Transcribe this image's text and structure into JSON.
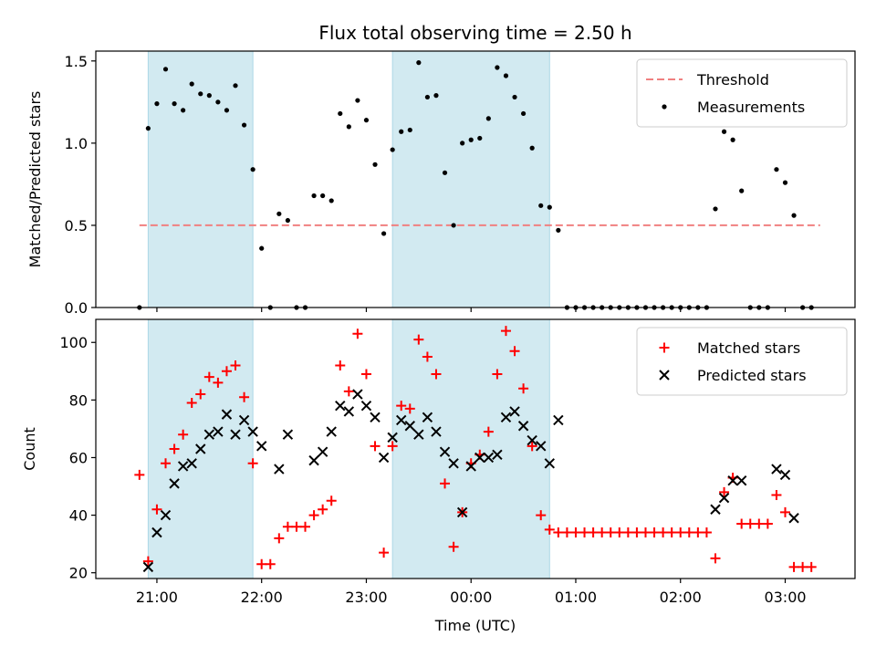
{
  "figure": {
    "title": "Flux total observing time = 2.50 h",
    "xlabel": "Time (UTC)",
    "xticks": [
      "21:00",
      "22:00",
      "23:00",
      "00:00",
      "01:00",
      "02:00",
      "03:00"
    ],
    "shade_color": "#add8e6",
    "shaded_intervals": [
      [
        "20:55",
        "21:55"
      ],
      [
        "23:15",
        "00:45"
      ]
    ]
  },
  "chart_data": [
    {
      "type": "scatter",
      "ylabel": "Matched/Predicted stars",
      "ylim": [
        0,
        1.56
      ],
      "yticks": [
        "0.0",
        "0.5",
        "1.0",
        "1.5"
      ],
      "legend": {
        "placement": "top-right"
      },
      "threshold": {
        "name": "Threshold",
        "value": 0.5,
        "x_range": [
          "20:50",
          "03:20"
        ],
        "color": "#f08080",
        "style": "dashed"
      },
      "series": [
        {
          "name": "Measurements",
          "color": "#000000",
          "marker": "dot",
          "points": [
            [
              "20:50",
              0.0
            ],
            [
              "20:55",
              1.09
            ],
            [
              "21:00",
              1.24
            ],
            [
              "21:05",
              1.45
            ],
            [
              "21:10",
              1.24
            ],
            [
              "21:15",
              1.2
            ],
            [
              "21:20",
              1.36
            ],
            [
              "21:25",
              1.3
            ],
            [
              "21:30",
              1.29
            ],
            [
              "21:35",
              1.25
            ],
            [
              "21:40",
              1.2
            ],
            [
              "21:45",
              1.35
            ],
            [
              "21:50",
              1.11
            ],
            [
              "21:55",
              0.84
            ],
            [
              "22:00",
              0.36
            ],
            [
              "22:05",
              0.0
            ],
            [
              "22:10",
              0.57
            ],
            [
              "22:15",
              0.53
            ],
            [
              "22:20",
              0.0
            ],
            [
              "22:25",
              0.0
            ],
            [
              "22:30",
              0.68
            ],
            [
              "22:35",
              0.68
            ],
            [
              "22:40",
              0.65
            ],
            [
              "22:45",
              1.18
            ],
            [
              "22:50",
              1.1
            ],
            [
              "22:55",
              1.26
            ],
            [
              "23:00",
              1.14
            ],
            [
              "23:05",
              0.87
            ],
            [
              "23:10",
              0.45
            ],
            [
              "23:15",
              0.96
            ],
            [
              "23:20",
              1.07
            ],
            [
              "23:25",
              1.08
            ],
            [
              "23:30",
              1.49
            ],
            [
              "23:35",
              1.28
            ],
            [
              "23:40",
              1.29
            ],
            [
              "23:45",
              0.82
            ],
            [
              "23:50",
              0.5
            ],
            [
              "23:55",
              1.0
            ],
            [
              "00:00",
              1.02
            ],
            [
              "00:05",
              1.03
            ],
            [
              "00:10",
              1.15
            ],
            [
              "00:15",
              1.46
            ],
            [
              "00:20",
              1.41
            ],
            [
              "00:25",
              1.28
            ],
            [
              "00:30",
              1.18
            ],
            [
              "00:35",
              0.97
            ],
            [
              "00:40",
              0.62
            ],
            [
              "00:45",
              0.61
            ],
            [
              "00:50",
              0.47
            ],
            [
              "00:55",
              0.0
            ],
            [
              "01:00",
              0.0
            ],
            [
              "01:05",
              0.0
            ],
            [
              "01:10",
              0.0
            ],
            [
              "01:15",
              0.0
            ],
            [
              "01:20",
              0.0
            ],
            [
              "01:25",
              0.0
            ],
            [
              "01:30",
              0.0
            ],
            [
              "01:35",
              0.0
            ],
            [
              "01:40",
              0.0
            ],
            [
              "01:45",
              0.0
            ],
            [
              "01:50",
              0.0
            ],
            [
              "01:55",
              0.0
            ],
            [
              "02:00",
              0.0
            ],
            [
              "02:05",
              0.0
            ],
            [
              "02:10",
              0.0
            ],
            [
              "02:15",
              0.0
            ],
            [
              "02:20",
              0.6
            ],
            [
              "02:25",
              1.07
            ],
            [
              "02:30",
              1.02
            ],
            [
              "02:35",
              0.71
            ],
            [
              "02:40",
              0.0
            ],
            [
              "02:45",
              0.0
            ],
            [
              "02:50",
              0.0
            ],
            [
              "02:55",
              0.84
            ],
            [
              "03:00",
              0.76
            ],
            [
              "03:05",
              0.56
            ],
            [
              "03:10",
              0.0
            ],
            [
              "03:15",
              0.0
            ]
          ]
        }
      ]
    },
    {
      "type": "scatter",
      "ylabel": "Count",
      "ylim": [
        18,
        108
      ],
      "yticks": [
        "20",
        "40",
        "60",
        "80",
        "100"
      ],
      "legend": {
        "placement": "top-right"
      },
      "series": [
        {
          "name": "Matched stars",
          "color": "#ff0000",
          "marker": "plus",
          "points": [
            [
              "20:50",
              54
            ],
            [
              "20:55",
              24
            ],
            [
              "21:00",
              42
            ],
            [
              "21:05",
              58
            ],
            [
              "21:10",
              63
            ],
            [
              "21:15",
              68
            ],
            [
              "21:20",
              79
            ],
            [
              "21:25",
              82
            ],
            [
              "21:30",
              88
            ],
            [
              "21:35",
              86
            ],
            [
              "21:40",
              90
            ],
            [
              "21:45",
              92
            ],
            [
              "21:50",
              81
            ],
            [
              "21:55",
              58
            ],
            [
              "22:00",
              23
            ],
            [
              "22:05",
              23
            ],
            [
              "22:10",
              32
            ],
            [
              "22:15",
              36
            ],
            [
              "22:20",
              36
            ],
            [
              "22:25",
              36
            ],
            [
              "22:30",
              40
            ],
            [
              "22:35",
              42
            ],
            [
              "22:40",
              45
            ],
            [
              "22:45",
              92
            ],
            [
              "22:50",
              83
            ],
            [
              "22:55",
              103
            ],
            [
              "23:00",
              89
            ],
            [
              "23:05",
              64
            ],
            [
              "23:10",
              27
            ],
            [
              "23:15",
              64
            ],
            [
              "23:20",
              78
            ],
            [
              "23:25",
              77
            ],
            [
              "23:30",
              101
            ],
            [
              "23:35",
              95
            ],
            [
              "23:40",
              89
            ],
            [
              "23:45",
              51
            ],
            [
              "23:50",
              29
            ],
            [
              "23:55",
              41
            ],
            [
              "00:00",
              58
            ],
            [
              "00:05",
              61
            ],
            [
              "00:10",
              69
            ],
            [
              "00:15",
              89
            ],
            [
              "00:20",
              104
            ],
            [
              "00:25",
              97
            ],
            [
              "00:30",
              84
            ],
            [
              "00:35",
              64
            ],
            [
              "00:40",
              40
            ],
            [
              "00:45",
              35
            ],
            [
              "00:50",
              34
            ],
            [
              "00:55",
              34
            ],
            [
              "01:00",
              34
            ],
            [
              "01:05",
              34
            ],
            [
              "01:10",
              34
            ],
            [
              "01:15",
              34
            ],
            [
              "01:20",
              34
            ],
            [
              "01:25",
              34
            ],
            [
              "01:30",
              34
            ],
            [
              "01:35",
              34
            ],
            [
              "01:40",
              34
            ],
            [
              "01:45",
              34
            ],
            [
              "01:50",
              34
            ],
            [
              "01:55",
              34
            ],
            [
              "02:00",
              34
            ],
            [
              "02:05",
              34
            ],
            [
              "02:10",
              34
            ],
            [
              "02:15",
              34
            ],
            [
              "02:20",
              25
            ],
            [
              "02:25",
              48
            ],
            [
              "02:30",
              53
            ],
            [
              "02:35",
              37
            ],
            [
              "02:40",
              37
            ],
            [
              "02:45",
              37
            ],
            [
              "02:50",
              37
            ],
            [
              "02:55",
              47
            ],
            [
              "03:00",
              41
            ],
            [
              "03:05",
              22
            ],
            [
              "03:10",
              22
            ],
            [
              "03:15",
              22
            ]
          ]
        },
        {
          "name": "Predicted stars",
          "color": "#000000",
          "marker": "x",
          "points": [
            [
              "20:55",
              22
            ],
            [
              "21:00",
              34
            ],
            [
              "21:05",
              40
            ],
            [
              "21:10",
              51
            ],
            [
              "21:15",
              57
            ],
            [
              "21:20",
              58
            ],
            [
              "21:25",
              63
            ],
            [
              "21:30",
              68
            ],
            [
              "21:35",
              69
            ],
            [
              "21:40",
              75
            ],
            [
              "21:45",
              68
            ],
            [
              "21:50",
              73
            ],
            [
              "21:55",
              69
            ],
            [
              "22:00",
              64
            ],
            [
              "22:10",
              56
            ],
            [
              "22:15",
              68
            ],
            [
              "22:30",
              59
            ],
            [
              "22:35",
              62
            ],
            [
              "22:40",
              69
            ],
            [
              "22:45",
              78
            ],
            [
              "22:50",
              76
            ],
            [
              "22:55",
              82
            ],
            [
              "23:00",
              78
            ],
            [
              "23:05",
              74
            ],
            [
              "23:10",
              60
            ],
            [
              "23:15",
              67
            ],
            [
              "23:20",
              73
            ],
            [
              "23:25",
              71
            ],
            [
              "23:30",
              68
            ],
            [
              "23:35",
              74
            ],
            [
              "23:40",
              69
            ],
            [
              "23:45",
              62
            ],
            [
              "23:50",
              58
            ],
            [
              "23:55",
              41
            ],
            [
              "00:00",
              57
            ],
            [
              "00:05",
              60
            ],
            [
              "00:10",
              60
            ],
            [
              "00:15",
              61
            ],
            [
              "00:20",
              74
            ],
            [
              "00:25",
              76
            ],
            [
              "00:30",
              71
            ],
            [
              "00:35",
              66
            ],
            [
              "00:40",
              64
            ],
            [
              "00:45",
              58
            ],
            [
              "00:50",
              73
            ],
            [
              "02:20",
              42
            ],
            [
              "02:25",
              46
            ],
            [
              "02:30",
              52
            ],
            [
              "02:35",
              52
            ],
            [
              "02:55",
              56
            ],
            [
              "03:00",
              54
            ],
            [
              "03:05",
              39
            ]
          ]
        }
      ]
    }
  ]
}
